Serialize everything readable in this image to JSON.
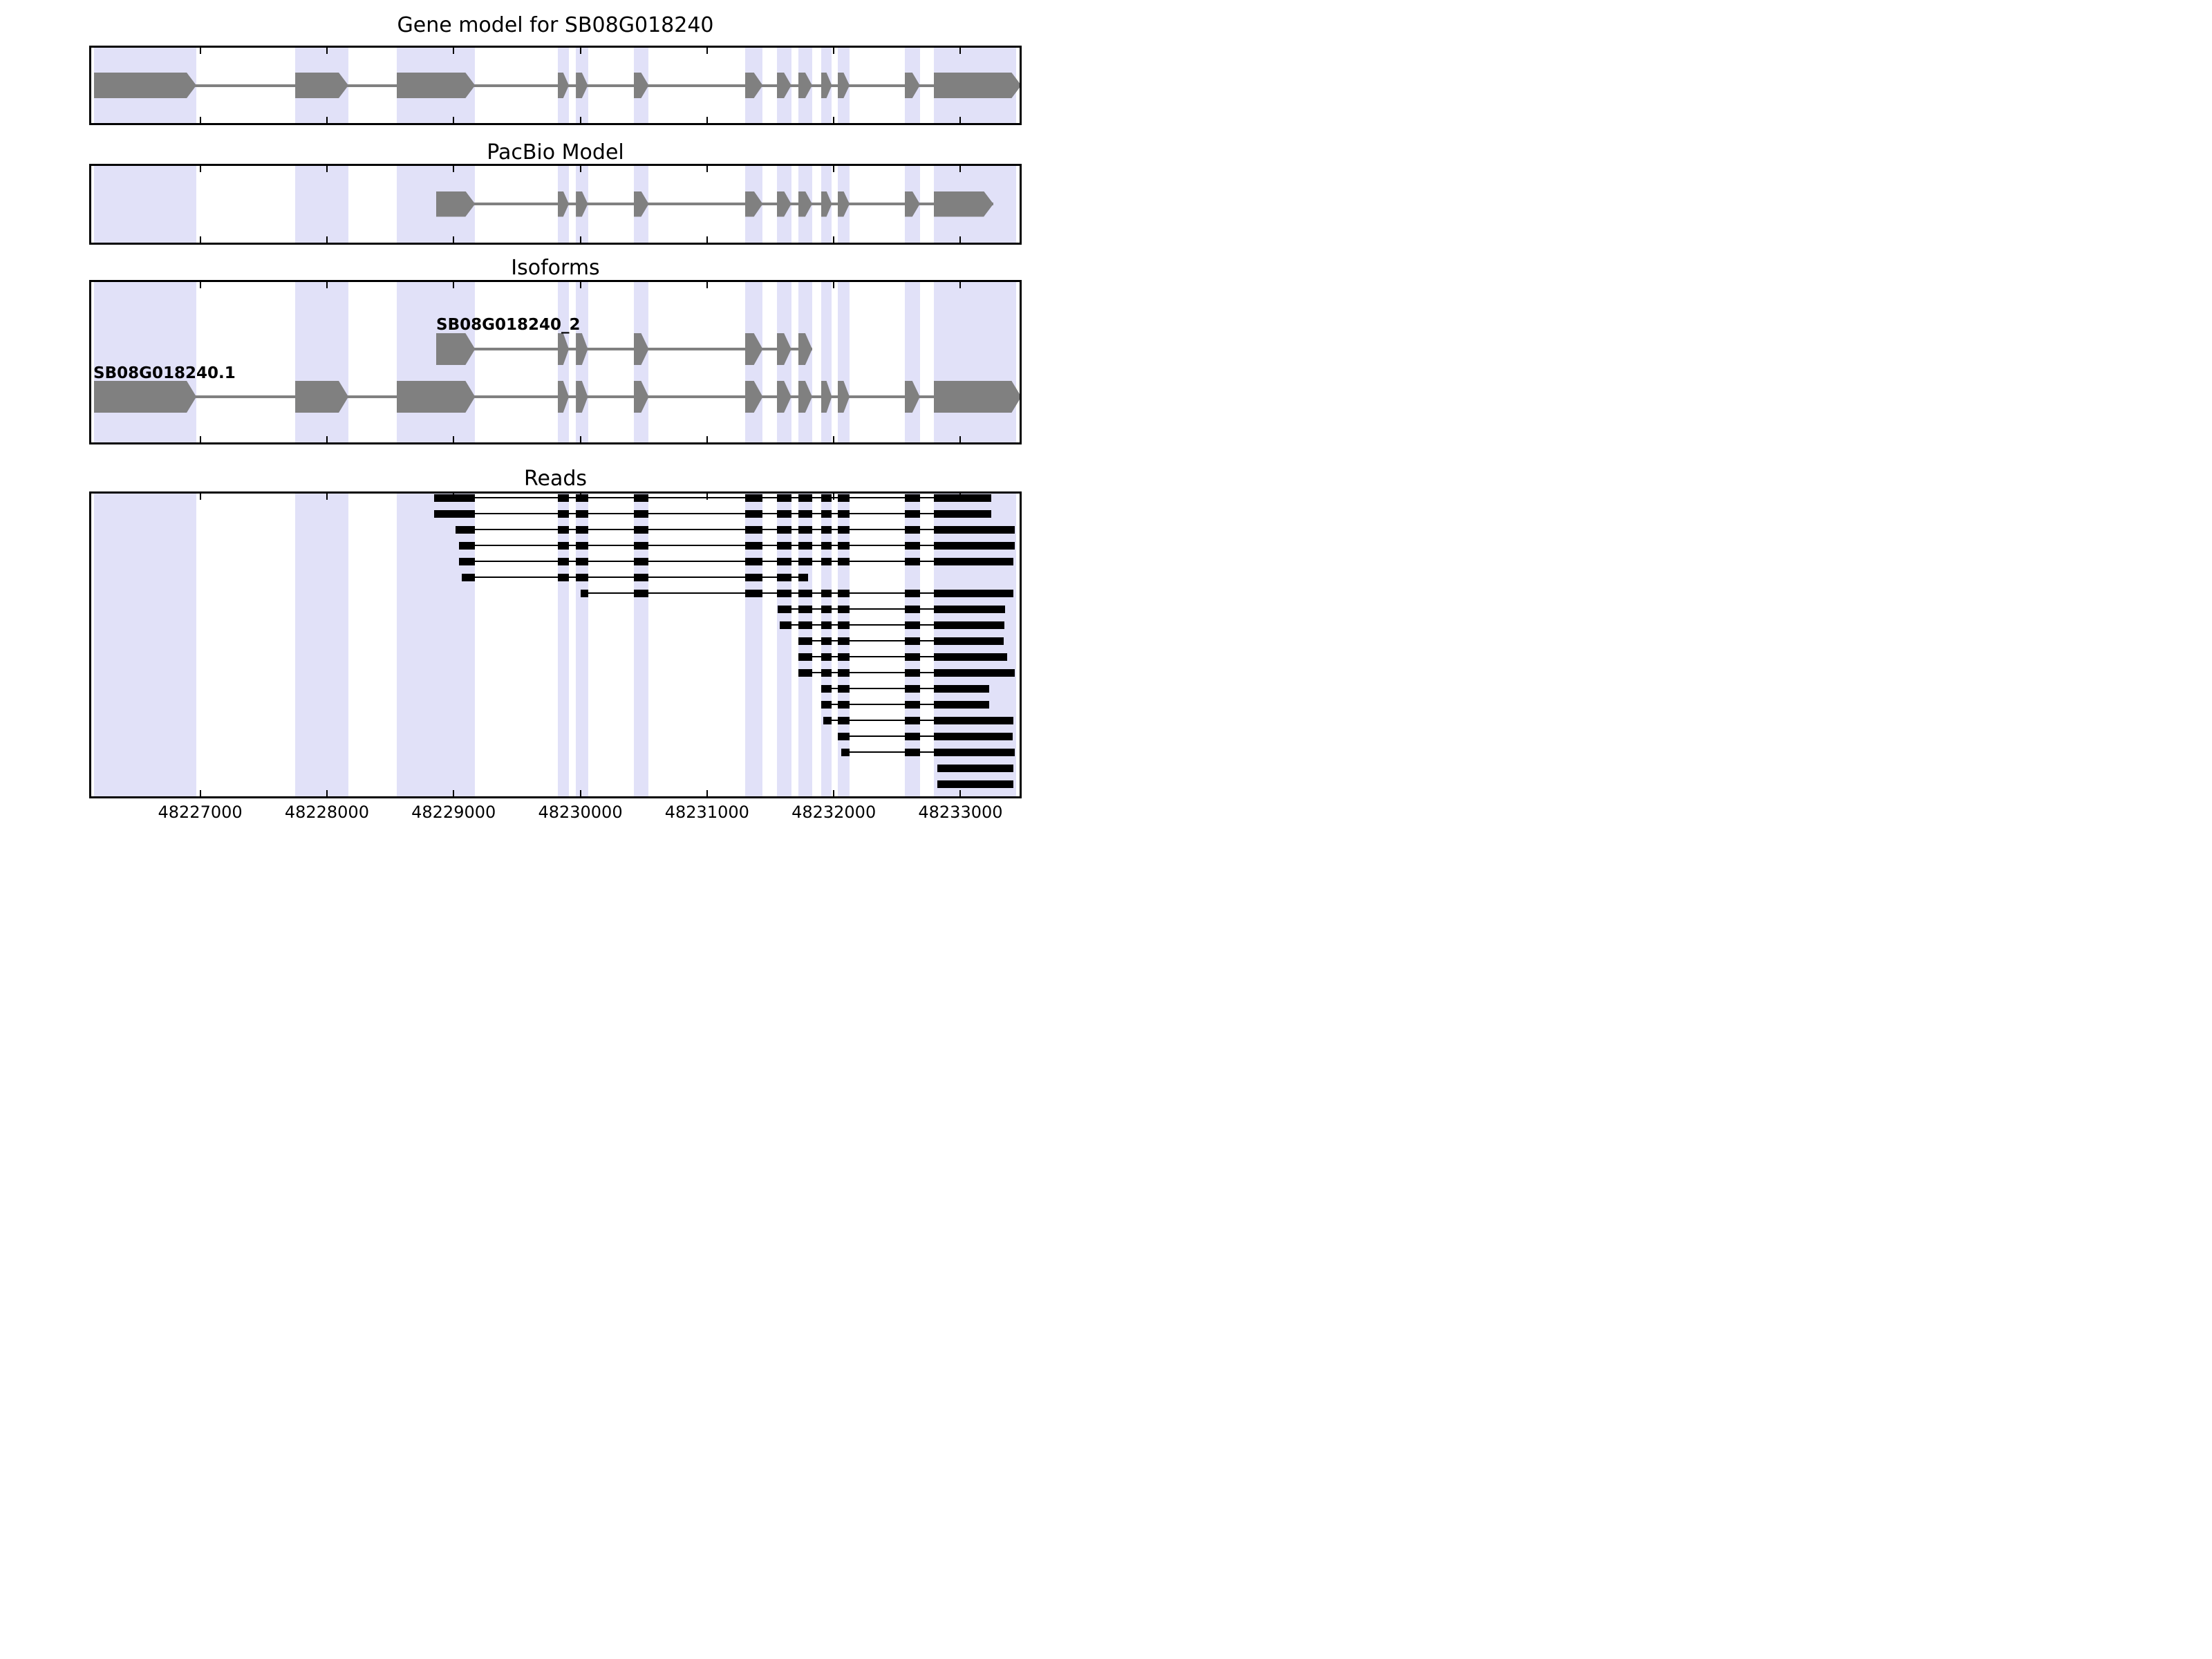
{
  "header": {
    "title1": "Gene model for SB08G018240",
    "title2": "PacBio Model",
    "title3": "Isoforms",
    "title4": "Reads"
  },
  "axis": {
    "domain": [
      48226124,
      48233483
    ],
    "tick_values": [
      48227000,
      48228000,
      48229000,
      48230000,
      48231000,
      48232000,
      48233000
    ],
    "tick_labels": [
      "48227000",
      "48228000",
      "48229000",
      "48230000",
      "48231000",
      "48232000",
      "48233000"
    ]
  },
  "colors": {
    "band": "#e1e1f8",
    "exon_gray": "#808080",
    "intron_gray": "#808080",
    "read_black": "#000000",
    "frame_black": "#000000",
    "background": "#ffffff"
  },
  "chart_data": {
    "type": "other",
    "subtype": "genome-browser-gene-structure-tracks",
    "x_axis": {
      "ticks": [
        48227000,
        48228000,
        48229000,
        48230000,
        48231000,
        48232000,
        48233000
      ],
      "range": [
        48226124,
        48233483
      ],
      "grid": false
    },
    "bands": [
      [
        48226160,
        48226970
      ],
      [
        48227750,
        48228170
      ],
      [
        48228550,
        48229170
      ],
      [
        48229820,
        48229910
      ],
      [
        48229965,
        48230060
      ],
      [
        48230420,
        48230540
      ],
      [
        48231300,
        48231440
      ],
      [
        48231550,
        48231665
      ],
      [
        48231720,
        48231830
      ],
      [
        48231900,
        48231985
      ],
      [
        48232030,
        48232125
      ],
      [
        48232560,
        48232680
      ],
      [
        48232790,
        48233440
      ]
    ],
    "gene_model": {
      "exons": [
        [
          48226160,
          48226970
        ],
        [
          48227750,
          48228170
        ],
        [
          48228550,
          48229170
        ],
        [
          48229820,
          48229910
        ],
        [
          48229965,
          48230060
        ],
        [
          48230420,
          48230540
        ],
        [
          48231300,
          48231440
        ],
        [
          48231550,
          48231665
        ],
        [
          48231720,
          48231830
        ],
        [
          48231900,
          48231985
        ],
        [
          48232030,
          48232125
        ],
        [
          48232560,
          48232680
        ],
        [
          48232790,
          48233480
        ]
      ]
    },
    "pacbio_model": {
      "exons": [
        [
          48228860,
          48229170
        ],
        [
          48229820,
          48229910
        ],
        [
          48229965,
          48230060
        ],
        [
          48230420,
          48230540
        ],
        [
          48231300,
          48231440
        ],
        [
          48231550,
          48231665
        ],
        [
          48231720,
          48231830
        ],
        [
          48231900,
          48231985
        ],
        [
          48232030,
          48232125
        ],
        [
          48232560,
          48232680
        ],
        [
          48232790,
          48233260
        ]
      ]
    },
    "isoforms": [
      {
        "name": "SB08G018240_2",
        "exons": [
          [
            48228860,
            48229170
          ],
          [
            48229820,
            48229910
          ],
          [
            48229965,
            48230060
          ],
          [
            48230420,
            48230540
          ],
          [
            48231300,
            48231440
          ],
          [
            48231550,
            48231665
          ],
          [
            48231720,
            48231830
          ]
        ]
      },
      {
        "name": "SB08G018240.1",
        "exons": [
          [
            48226160,
            48226970
          ],
          [
            48227750,
            48228170
          ],
          [
            48228550,
            48229170
          ],
          [
            48229820,
            48229910
          ],
          [
            48229965,
            48230060
          ],
          [
            48230420,
            48230540
          ],
          [
            48231300,
            48231440
          ],
          [
            48231550,
            48231665
          ],
          [
            48231720,
            48231830
          ],
          [
            48231900,
            48231985
          ],
          [
            48232030,
            48232125
          ],
          [
            48232560,
            48232680
          ],
          [
            48232790,
            48233480
          ]
        ]
      }
    ],
    "read_exon_template": [
      [
        48228550,
        48229170
      ],
      [
        48229820,
        48229910
      ],
      [
        48229965,
        48230060
      ],
      [
        48230420,
        48230540
      ],
      [
        48231300,
        48231440
      ],
      [
        48231550,
        48231665
      ],
      [
        48231720,
        48231830
      ],
      [
        48231900,
        48231985
      ],
      [
        48232030,
        48232125
      ],
      [
        48232560,
        48232680
      ],
      [
        48232790,
        48233480
      ]
    ],
    "reads": [
      {
        "start": 48228845,
        "end": 48233245
      },
      {
        "start": 48228845,
        "end": 48233245
      },
      {
        "start": 48229015,
        "end": 48233430
      },
      {
        "start": 48229040,
        "end": 48233430
      },
      {
        "start": 48229040,
        "end": 48233420
      },
      {
        "start": 48229065,
        "end": 48231800
      },
      {
        "start": 48230000,
        "end": 48233420
      },
      {
        "start": 48231555,
        "end": 48233350
      },
      {
        "start": 48231575,
        "end": 48233345
      },
      {
        "start": 48231720,
        "end": 48233340
      },
      {
        "start": 48231720,
        "end": 48233370
      },
      {
        "start": 48231720,
        "end": 48233430
      },
      {
        "start": 48231900,
        "end": 48233225
      },
      {
        "start": 48231900,
        "end": 48233225
      },
      {
        "start": 48231920,
        "end": 48233420
      },
      {
        "start": 48232030,
        "end": 48233410
      },
      {
        "start": 48232060,
        "end": 48233430
      },
      {
        "start": 48232820,
        "end": 48233420
      },
      {
        "start": 48232820,
        "end": 48233420
      }
    ]
  }
}
